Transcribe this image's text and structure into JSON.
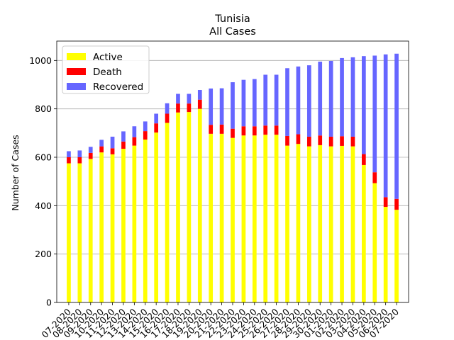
{
  "chart_data": {
    "type": "bar",
    "stacked": true,
    "title": "Tunisia",
    "subtitle": "All Cases",
    "xlabel": "",
    "ylabel": "Number of Cases",
    "ylim": [
      0,
      1080
    ],
    "yticks": [
      0,
      200,
      400,
      600,
      800,
      1000
    ],
    "grid": "y",
    "legend_position": "upper-left",
    "categories": [
      "07-2020",
      "08-2020",
      "09-2020",
      "10-2020",
      "11-2020",
      "12-2020",
      "13-2020",
      "14-2020",
      "15-2020",
      "16-2020",
      "17-2020",
      "18-2020",
      "19-2020",
      "20-2020",
      "21-2020",
      "22-2020",
      "23-2020",
      "24-2020",
      "25-2020",
      "26-2020",
      "27-2020",
      "28-2020",
      "29-2020",
      "30-2020",
      "01-2020",
      "02-2020",
      "03-2020",
      "04-2020",
      "05-2020",
      "06-2020",
      "07-2020"
    ],
    "series": [
      {
        "name": "Active",
        "color": "#ffff00",
        "values": [
          575,
          575,
          593,
          620,
          612,
          635,
          648,
          673,
          702,
          742,
          785,
          787,
          800,
          697,
          697,
          680,
          690,
          690,
          693,
          693,
          648,
          655,
          645,
          650,
          645,
          647,
          645,
          568,
          493,
          395,
          383
        ]
      },
      {
        "name": "Death",
        "color": "#ff0000",
        "values": [
          25,
          25,
          25,
          25,
          25,
          30,
          35,
          35,
          38,
          38,
          37,
          35,
          38,
          37,
          38,
          38,
          38,
          38,
          38,
          38,
          40,
          40,
          40,
          40,
          40,
          40,
          40,
          45,
          45,
          40,
          45
        ]
      },
      {
        "name": "Recovered",
        "color": "#6666ff",
        "values": [
          25,
          28,
          25,
          27,
          48,
          42,
          45,
          40,
          40,
          43,
          40,
          40,
          40,
          150,
          150,
          192,
          192,
          195,
          210,
          210,
          280,
          280,
          295,
          305,
          313,
          323,
          328,
          405,
          482,
          590,
          600
        ]
      }
    ]
  }
}
